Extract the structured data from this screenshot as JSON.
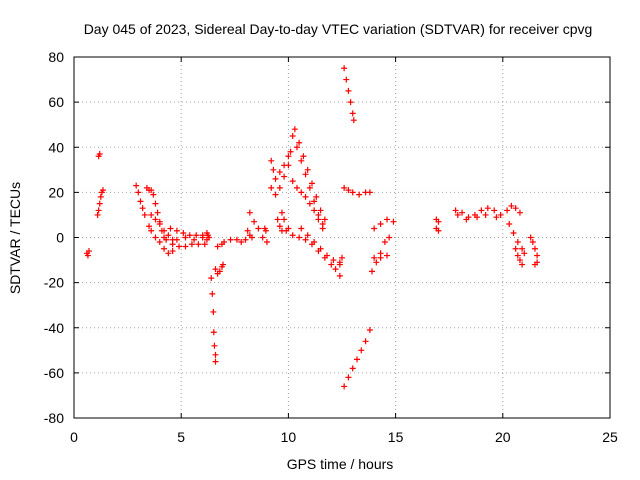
{
  "chart_data": {
    "type": "scatter",
    "title": "Day 045 of 2023, Sidereal Day-to-day VTEC variation (SDTVAR) for receiver cpvg",
    "xlabel": "GPS time / hours",
    "ylabel": "SDTVAR / TECUs",
    "xlim": [
      0,
      25
    ],
    "ylim": [
      -80,
      80
    ],
    "xticks": [
      0,
      5,
      10,
      15,
      20,
      25
    ],
    "yticks": [
      -80,
      -60,
      -40,
      -20,
      0,
      20,
      40,
      60,
      80
    ],
    "grid": true,
    "marker": "+",
    "series": [
      {
        "name": "SDTVAR",
        "color": "#ff0000",
        "points": [
          [
            0.6,
            -7
          ],
          [
            0.65,
            -8
          ],
          [
            0.7,
            -6
          ],
          [
            1.15,
            36
          ],
          [
            1.2,
            37
          ],
          [
            1.1,
            10
          ],
          [
            1.15,
            12
          ],
          [
            1.2,
            15
          ],
          [
            1.25,
            18
          ],
          [
            1.3,
            20
          ],
          [
            1.35,
            21
          ],
          [
            2.9,
            23
          ],
          [
            3.0,
            20
          ],
          [
            3.1,
            16
          ],
          [
            3.2,
            13
          ],
          [
            3.3,
            10
          ],
          [
            3.4,
            22
          ],
          [
            3.5,
            21
          ],
          [
            3.6,
            21
          ],
          [
            3.7,
            19
          ],
          [
            3.8,
            15
          ],
          [
            3.9,
            11
          ],
          [
            4.0,
            7
          ],
          [
            4.1,
            3
          ],
          [
            4.2,
            0
          ],
          [
            3.5,
            5
          ],
          [
            3.6,
            3
          ],
          [
            3.8,
            0
          ],
          [
            4.0,
            -2
          ],
          [
            4.2,
            -5
          ],
          [
            4.4,
            -7
          ],
          [
            4.6,
            -6
          ],
          [
            3.6,
            10
          ],
          [
            3.8,
            8
          ],
          [
            4.0,
            6
          ],
          [
            4.2,
            3
          ],
          [
            4.4,
            1
          ],
          [
            4.6,
            -1
          ],
          [
            4.3,
            -1
          ],
          [
            4.6,
            -3
          ],
          [
            4.9,
            -4
          ],
          [
            5.2,
            -4
          ],
          [
            5.5,
            -3
          ],
          [
            5.8,
            -3
          ],
          [
            6.1,
            -3
          ],
          [
            4.5,
            4
          ],
          [
            4.8,
            3
          ],
          [
            5.1,
            2
          ],
          [
            5.4,
            1
          ],
          [
            5.7,
            1
          ],
          [
            6.0,
            0
          ],
          [
            6.2,
            -1
          ],
          [
            4.8,
            -1
          ],
          [
            5.2,
            0
          ],
          [
            5.6,
            -1
          ],
          [
            6.0,
            1
          ],
          [
            6.2,
            2
          ],
          [
            6.25,
            1
          ],
          [
            6.3,
            0
          ],
          [
            6.4,
            -18
          ],
          [
            6.45,
            -25
          ],
          [
            6.5,
            -33
          ],
          [
            6.52,
            -42
          ],
          [
            6.55,
            -48
          ],
          [
            6.6,
            -52
          ],
          [
            6.6,
            -55
          ],
          [
            6.6,
            -14
          ],
          [
            6.7,
            -16
          ],
          [
            6.8,
            -15
          ],
          [
            6.9,
            -13
          ],
          [
            6.95,
            -12
          ],
          [
            6.7,
            -4
          ],
          [
            6.9,
            -3
          ],
          [
            7.0,
            -2
          ],
          [
            7.3,
            -1
          ],
          [
            7.6,
            -1
          ],
          [
            7.8,
            -2
          ],
          [
            8.0,
            -1
          ],
          [
            8.1,
            3
          ],
          [
            8.2,
            1
          ],
          [
            8.3,
            0
          ],
          [
            8.2,
            11
          ],
          [
            8.4,
            7
          ],
          [
            8.6,
            4
          ],
          [
            8.8,
            0
          ],
          [
            9.0,
            -2
          ],
          [
            8.9,
            4
          ],
          [
            8.95,
            3
          ],
          [
            9.2,
            34
          ],
          [
            9.3,
            30
          ],
          [
            9.4,
            26
          ],
          [
            9.6,
            29
          ],
          [
            9.8,
            32
          ],
          [
            10.0,
            36
          ],
          [
            10.1,
            38
          ],
          [
            9.2,
            22
          ],
          [
            9.4,
            19
          ],
          [
            9.6,
            22
          ],
          [
            9.8,
            27
          ],
          [
            10.0,
            32
          ],
          [
            9.5,
            8
          ],
          [
            9.6,
            5
          ],
          [
            9.7,
            3
          ],
          [
            10.2,
            45
          ],
          [
            10.4,
            40
          ],
          [
            10.6,
            34
          ],
          [
            10.8,
            28
          ],
          [
            11.0,
            22
          ],
          [
            11.2,
            16
          ],
          [
            11.4,
            10
          ],
          [
            11.6,
            6
          ],
          [
            10.3,
            48
          ],
          [
            10.5,
            42
          ],
          [
            10.7,
            36
          ],
          [
            10.9,
            30
          ],
          [
            11.1,
            24
          ],
          [
            11.3,
            18
          ],
          [
            11.5,
            12
          ],
          [
            11.7,
            8
          ],
          [
            10.2,
            25
          ],
          [
            10.4,
            22
          ],
          [
            10.6,
            20
          ],
          [
            10.8,
            18
          ],
          [
            11.0,
            15
          ],
          [
            11.2,
            12
          ],
          [
            11.4,
            8
          ],
          [
            11.6,
            4
          ],
          [
            9.9,
            3
          ],
          [
            10.2,
            1
          ],
          [
            10.5,
            0
          ],
          [
            10.8,
            -1
          ],
          [
            11.1,
            -3
          ],
          [
            11.4,
            -6
          ],
          [
            11.7,
            -9
          ],
          [
            12.0,
            -12
          ],
          [
            12.2,
            -14
          ],
          [
            12.4,
            -17
          ],
          [
            10.6,
            4
          ],
          [
            10.9,
            1
          ],
          [
            11.2,
            -2
          ],
          [
            11.5,
            -5
          ],
          [
            11.8,
            -8
          ],
          [
            12.1,
            -10
          ],
          [
            12.4,
            -11
          ],
          [
            9.7,
            11
          ],
          [
            9.8,
            8
          ],
          [
            10.0,
            4
          ],
          [
            12.4,
            -12
          ],
          [
            12.5,
            -9
          ],
          [
            12.6,
            75
          ],
          [
            12.7,
            70
          ],
          [
            12.8,
            65
          ],
          [
            12.9,
            60
          ],
          [
            13.0,
            55
          ],
          [
            13.05,
            52
          ],
          [
            12.6,
            22
          ],
          [
            12.8,
            21
          ],
          [
            13.0,
            20
          ],
          [
            13.3,
            19
          ],
          [
            13.6,
            20
          ],
          [
            13.8,
            20
          ],
          [
            12.6,
            -66
          ],
          [
            12.8,
            -62
          ],
          [
            13.0,
            -58
          ],
          [
            13.2,
            -54
          ],
          [
            13.4,
            -50
          ],
          [
            13.6,
            -46
          ],
          [
            13.8,
            -41
          ],
          [
            13.9,
            -15
          ],
          [
            14.1,
            -11
          ],
          [
            14.3,
            -7
          ],
          [
            14.5,
            -2
          ],
          [
            14.7,
            0
          ],
          [
            14.0,
            4
          ],
          [
            14.3,
            6
          ],
          [
            14.6,
            8
          ],
          [
            14.9,
            7
          ],
          [
            14.0,
            -9
          ],
          [
            14.3,
            -9
          ],
          [
            14.6,
            -8
          ],
          [
            16.9,
            8
          ],
          [
            17.0,
            7
          ],
          [
            16.9,
            4
          ],
          [
            17.0,
            3
          ],
          [
            17.8,
            12
          ],
          [
            18.1,
            11
          ],
          [
            18.4,
            9
          ],
          [
            18.7,
            10
          ],
          [
            19.0,
            12
          ],
          [
            19.3,
            13
          ],
          [
            19.6,
            12
          ],
          [
            19.9,
            10
          ],
          [
            20.2,
            12
          ],
          [
            20.4,
            14
          ],
          [
            20.6,
            13
          ],
          [
            20.8,
            11
          ],
          [
            17.9,
            10
          ],
          [
            18.3,
            8
          ],
          [
            18.8,
            9
          ],
          [
            19.2,
            10
          ],
          [
            19.7,
            9
          ],
          [
            20.3,
            6
          ],
          [
            20.5,
            2
          ],
          [
            20.7,
            -2
          ],
          [
            20.9,
            -5
          ],
          [
            21.0,
            -7
          ],
          [
            20.6,
            -5
          ],
          [
            20.7,
            -8
          ],
          [
            20.8,
            -10
          ],
          [
            20.9,
            -12
          ],
          [
            21.3,
            0
          ],
          [
            21.4,
            -2
          ],
          [
            21.5,
            -5
          ],
          [
            21.6,
            -8
          ],
          [
            21.6,
            -11
          ],
          [
            21.5,
            -12
          ]
        ]
      }
    ]
  }
}
